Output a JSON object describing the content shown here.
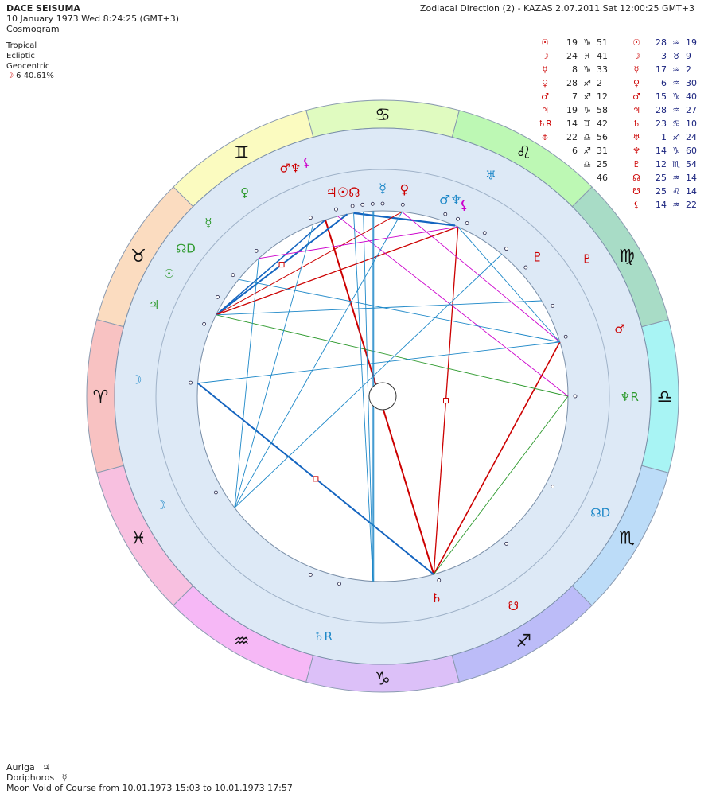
{
  "header": {
    "name": "DACE SEISUMA",
    "datetime": "10 January 1973  Wed   8:24:25 (GMT+3)",
    "chart_type": "Cosmogram",
    "zodiac": "Tropical",
    "plane": "Ecliptic",
    "center": "Geocentric",
    "moon_phase_glyph": "☽",
    "moon_phase": "6 40.61%",
    "right_title": "Zodiacal Direction (2) - KAZAS  2.07.2011  Sat 12:00:25 GMT+3"
  },
  "planet_table": [
    {
      "g": "☉",
      "d": "19",
      "s": "♑",
      "m": "51",
      "g2": "☉",
      "d2": "28",
      "s2": "♒",
      "m2": "19"
    },
    {
      "g": "☽",
      "d": "24",
      "s": "♓",
      "m": "41",
      "g2": "☽",
      "d2": "3",
      "s2": "♉",
      "m2": "9"
    },
    {
      "g": "☿",
      "d": "8",
      "s": "♑",
      "m": "33",
      "g2": "☿",
      "d2": "17",
      "s2": "♒",
      "m2": "2"
    },
    {
      "g": "♀",
      "d": "28",
      "s": "♐",
      "m": "2",
      "g2": "♀",
      "d2": "6",
      "s2": "♒",
      "m2": "30"
    },
    {
      "g": "♂",
      "d": "7",
      "s": "♐",
      "m": "12",
      "g2": "♂",
      "d2": "15",
      "s2": "♑",
      "m2": "40"
    },
    {
      "g": "♃",
      "d": "19",
      "s": "♑",
      "m": "58",
      "g2": "♃",
      "d2": "28",
      "s2": "♒",
      "m2": "27"
    },
    {
      "g": "♄R",
      "d": "14",
      "s": "♊",
      "m": "42",
      "g2": "♄",
      "d2": "23",
      "s2": "♋",
      "m2": "10"
    },
    {
      "g": "♅",
      "d": "22",
      "s": "♎",
      "m": "56",
      "g2": "♅",
      "d2": "1",
      "s2": "♐",
      "m2": "24"
    },
    {
      "g": "",
      "d": "6",
      "s": "♐",
      "m": "31",
      "g2": "♆",
      "d2": "14",
      "s2": "♑",
      "m2": "60"
    },
    {
      "g": "",
      "d": "",
      "s": "♎",
      "m": "25",
      "g2": "♇",
      "d2": "12",
      "s2": "♏",
      "m2": "54"
    },
    {
      "g": "",
      "d": "",
      "s": "",
      "m": "46",
      "g2": "☊",
      "d2": "25",
      "s2": "♒",
      "m2": "14"
    },
    {
      "g": "",
      "d": "",
      "s": "",
      "m": "",
      "g2": "☋",
      "d2": "25",
      "s2": "♌",
      "m2": "14"
    },
    {
      "g": "",
      "d": "",
      "s": "",
      "m": "",
      "g2": "⚸",
      "d2": "14",
      "s2": "♒",
      "m2": "22"
    }
  ],
  "zodiac_signs": [
    {
      "sym": "♎",
      "color": "#a8f4f4"
    },
    {
      "sym": "♍",
      "color": "#a8dcc6"
    },
    {
      "sym": "♌",
      "color": "#bdf8b4"
    },
    {
      "sym": "♋",
      "color": "#e0fbc0"
    },
    {
      "sym": "♊",
      "color": "#fbfbc0"
    },
    {
      "sym": "♉",
      "color": "#fbdcc0"
    },
    {
      "sym": "♈",
      "color": "#f8c2c2"
    },
    {
      "sym": "♓",
      "color": "#f8c0e0"
    },
    {
      "sym": "♒",
      "color": "#f6b8f6"
    },
    {
      "sym": "♑",
      "color": "#dcc0f8"
    },
    {
      "sym": "♐",
      "color": "#bcbcf8"
    },
    {
      "sym": "♏",
      "color": "#bcdcf8"
    }
  ],
  "inner_glyphs": [
    {
      "sym": "♂♆",
      "color": "#cc0000",
      "ang": 112
    },
    {
      "sym": "⚸",
      "color": "#cc00cc",
      "ang": 108
    },
    {
      "sym": "♅",
      "color": "#1e88c8",
      "ang": 64
    },
    {
      "sym": "♇",
      "color": "#cc0000",
      "ang": 34
    },
    {
      "sym": "♂",
      "color": "#cc0000",
      "ang": 16
    },
    {
      "sym": "♆R",
      "color": "#2e9a2e",
      "ang": 0
    },
    {
      "sym": "☊D",
      "color": "#1e88c8",
      "ang": -28
    },
    {
      "sym": "☋",
      "color": "#cc0000",
      "ang": -58
    },
    {
      "sym": "♄R",
      "color": "#1e88c8",
      "ang": -104
    },
    {
      "sym": "☽",
      "color": "#1e88c8",
      "ang": -154
    },
    {
      "sym": "☽",
      "color": "#1e88c8",
      "ang": 176
    },
    {
      "sym": "♃",
      "color": "#2e9a2e",
      "ang": 158
    },
    {
      "sym": "☉",
      "color": "#2e9a2e",
      "ang": 150
    },
    {
      "sym": "☊D",
      "color": "#2e9a2e",
      "ang": 143
    },
    {
      "sym": "☿",
      "color": "#2e9a2e",
      "ang": 135
    },
    {
      "sym": "♀",
      "color": "#2e9a2e",
      "ang": 124
    }
  ],
  "middle_glyphs": [
    {
      "sym": "♃☉☊",
      "color": "#cc0000",
      "ang": 101
    },
    {
      "sym": "☿",
      "color": "#1e88c8",
      "ang": 90
    },
    {
      "sym": "♀",
      "color": "#cc0000",
      "ang": 84
    },
    {
      "sym": "♂♆",
      "color": "#1e88c8",
      "ang": 71
    },
    {
      "sym": "⚸",
      "color": "#cc00cc",
      "ang": 67
    },
    {
      "sym": "♇",
      "color": "#cc0000",
      "ang": 42
    },
    {
      "sym": "♄",
      "color": "#cc0000",
      "ang": -75
    }
  ],
  "footer": {
    "line1_label": "Auriga",
    "line1_glyph": "♃",
    "line2_label": "Doriphoros",
    "line2_glyph": "☿",
    "line3": "Moon Void of Course from 10.01.1973 15:03 to 10.01.1973 17:57"
  }
}
